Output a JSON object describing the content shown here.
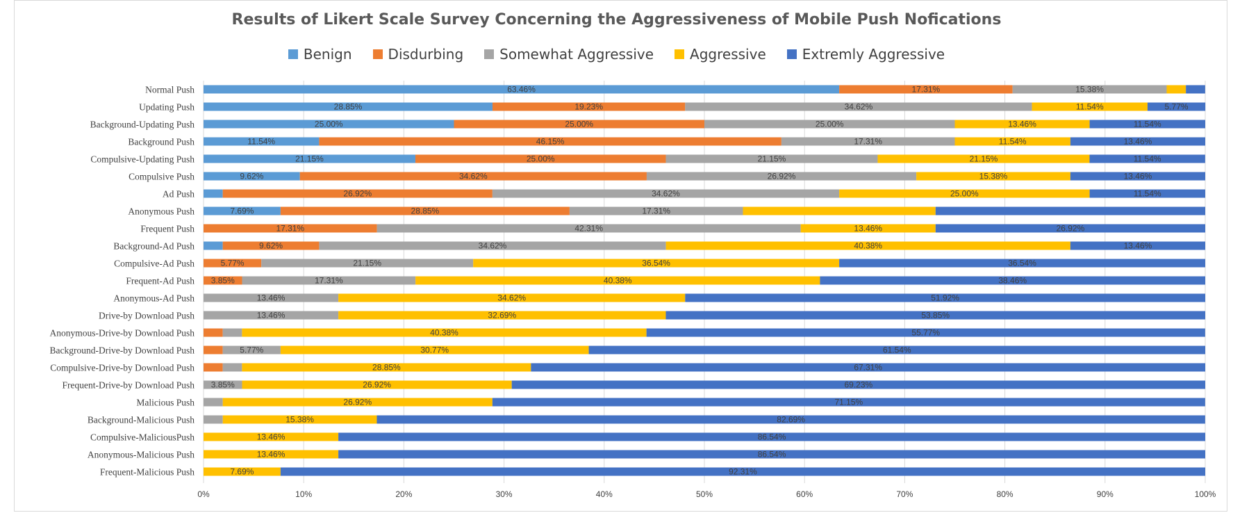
{
  "chart_data": {
    "type": "bar",
    "orientation": "horizontal",
    "stacked": "percent",
    "title": "Results of Likert Scale Survey Concerning the Aggressiveness of Mobile Push Nofications",
    "xlim": [
      0,
      100
    ],
    "x_ticks": [
      "0%",
      "10%",
      "20%",
      "30%",
      "40%",
      "50%",
      "60%",
      "70%",
      "80%",
      "90%",
      "100%"
    ],
    "grid": "vertical",
    "legend_position": "top",
    "categories": [
      "Normal Push",
      "Updating Push",
      "Background-Updating Push",
      "Background Push",
      "Compulsive-Updating Push",
      "Compulsive Push",
      "Ad Push",
      "Anonymous Push",
      "Frequent Push",
      "Background-Ad Push",
      "Compulsive-Ad Push",
      "Frequent-Ad Push",
      "Anonymous-Ad Push",
      "Drive-by Download Push",
      "Anonymous-Drive-by Download Push",
      "Background-Drive-by Download Push",
      "Compulsive-Drive-by Download Push",
      "Frequent-Drive-by Download Push",
      "Malicious Push",
      "Background-Malicious Push",
      "Compulsive-MaliciousPush",
      "Anonymous-Malicious Push",
      "Frequent-Malicious Push"
    ],
    "series": [
      {
        "name": "Benign",
        "color": "#5b9bd5",
        "values": [
          63.46,
          28.85,
          25.0,
          11.54,
          21.15,
          9.62,
          1.92,
          7.69,
          0,
          1.92,
          0,
          0,
          0,
          0,
          0,
          0,
          0,
          0,
          0,
          0,
          0,
          0,
          0
        ],
        "labels": [
          "63.46%",
          "28.85%",
          "25.00%",
          "11.54%",
          "21.15%",
          "9.62%",
          "",
          "7.69%",
          "",
          "",
          "",
          "",
          "",
          "",
          "",
          "",
          "",
          "",
          "",
          "",
          "",
          "",
          ""
        ]
      },
      {
        "name": "Disdurbing",
        "color": "#ed7d31",
        "values": [
          17.31,
          19.23,
          25.0,
          46.15,
          25.0,
          34.62,
          26.92,
          28.85,
          17.31,
          9.62,
          5.77,
          3.85,
          0,
          0,
          1.92,
          1.92,
          1.92,
          0,
          0,
          0,
          0,
          0,
          0
        ],
        "labels": [
          "17.31%",
          "19.23%",
          "25.00%",
          "46.15%",
          "25.00%",
          "34.62%",
          "26.92%",
          "28.85%",
          "17.31%",
          "9.62%",
          "5.77%",
          "3.85%",
          "",
          "",
          "",
          "",
          "",
          "",
          "",
          "",
          "",
          "",
          ""
        ]
      },
      {
        "name": "Somewhat Aggressive",
        "color": "#a5a5a5",
        "values": [
          15.38,
          34.62,
          25.0,
          17.31,
          21.15,
          26.92,
          34.62,
          17.31,
          42.31,
          34.62,
          21.15,
          17.31,
          13.46,
          13.46,
          1.92,
          5.77,
          1.92,
          3.85,
          1.92,
          1.92,
          0,
          0,
          0
        ],
        "labels": [
          "15.38%",
          "34.62%",
          "25.00%",
          "17.31%",
          "21.15%",
          "26.92%",
          "34.62%",
          "17.31%",
          "42.31%",
          "34.62%",
          "21.15%",
          "17.31%",
          "13.46%",
          "13.46%",
          "",
          "5.77%",
          "",
          "3.85%",
          "",
          "",
          "",
          "",
          ""
        ]
      },
      {
        "name": "Aggressive",
        "color": "#ffc000",
        "values": [
          1.92,
          11.54,
          13.46,
          11.54,
          21.15,
          15.38,
          25.0,
          19.23,
          13.46,
          40.38,
          36.54,
          40.38,
          34.62,
          32.69,
          40.38,
          30.77,
          28.85,
          26.92,
          26.92,
          15.38,
          13.46,
          13.46,
          7.69
        ],
        "labels": [
          "",
          "11.54%",
          "13.46%",
          "11.54%",
          "21.15%",
          "15.38%",
          "25.00%",
          "",
          "13.46%",
          "40.38%",
          "36.54%",
          "40.38%",
          "34.62%",
          "32.69%",
          "40.38%",
          "30.77%",
          "28.85%",
          "26.92%",
          "26.92%",
          "15.38%",
          "13.46%",
          "13.46%",
          "7.69%"
        ]
      },
      {
        "name": "Extremly Aggressive",
        "color": "#4472c4",
        "values": [
          1.92,
          5.77,
          11.54,
          13.46,
          11.54,
          13.46,
          11.54,
          26.92,
          26.92,
          13.46,
          36.54,
          38.46,
          51.92,
          53.85,
          55.77,
          61.54,
          67.31,
          69.23,
          71.15,
          82.69,
          86.54,
          86.54,
          92.31
        ],
        "labels": [
          "",
          "5.77%",
          "11.54%",
          "13.46%",
          "11.54%",
          "13.46%",
          "11.54%",
          "",
          "26.92%",
          "13.46%",
          "36.54%",
          "38.46%",
          "51.92%",
          "53.85%",
          "55.77%",
          "61.54%",
          "67.31%",
          "69.23%",
          "71.15%",
          "82.69%",
          "86.54%",
          "86.54%",
          "92.31%"
        ]
      }
    ]
  }
}
